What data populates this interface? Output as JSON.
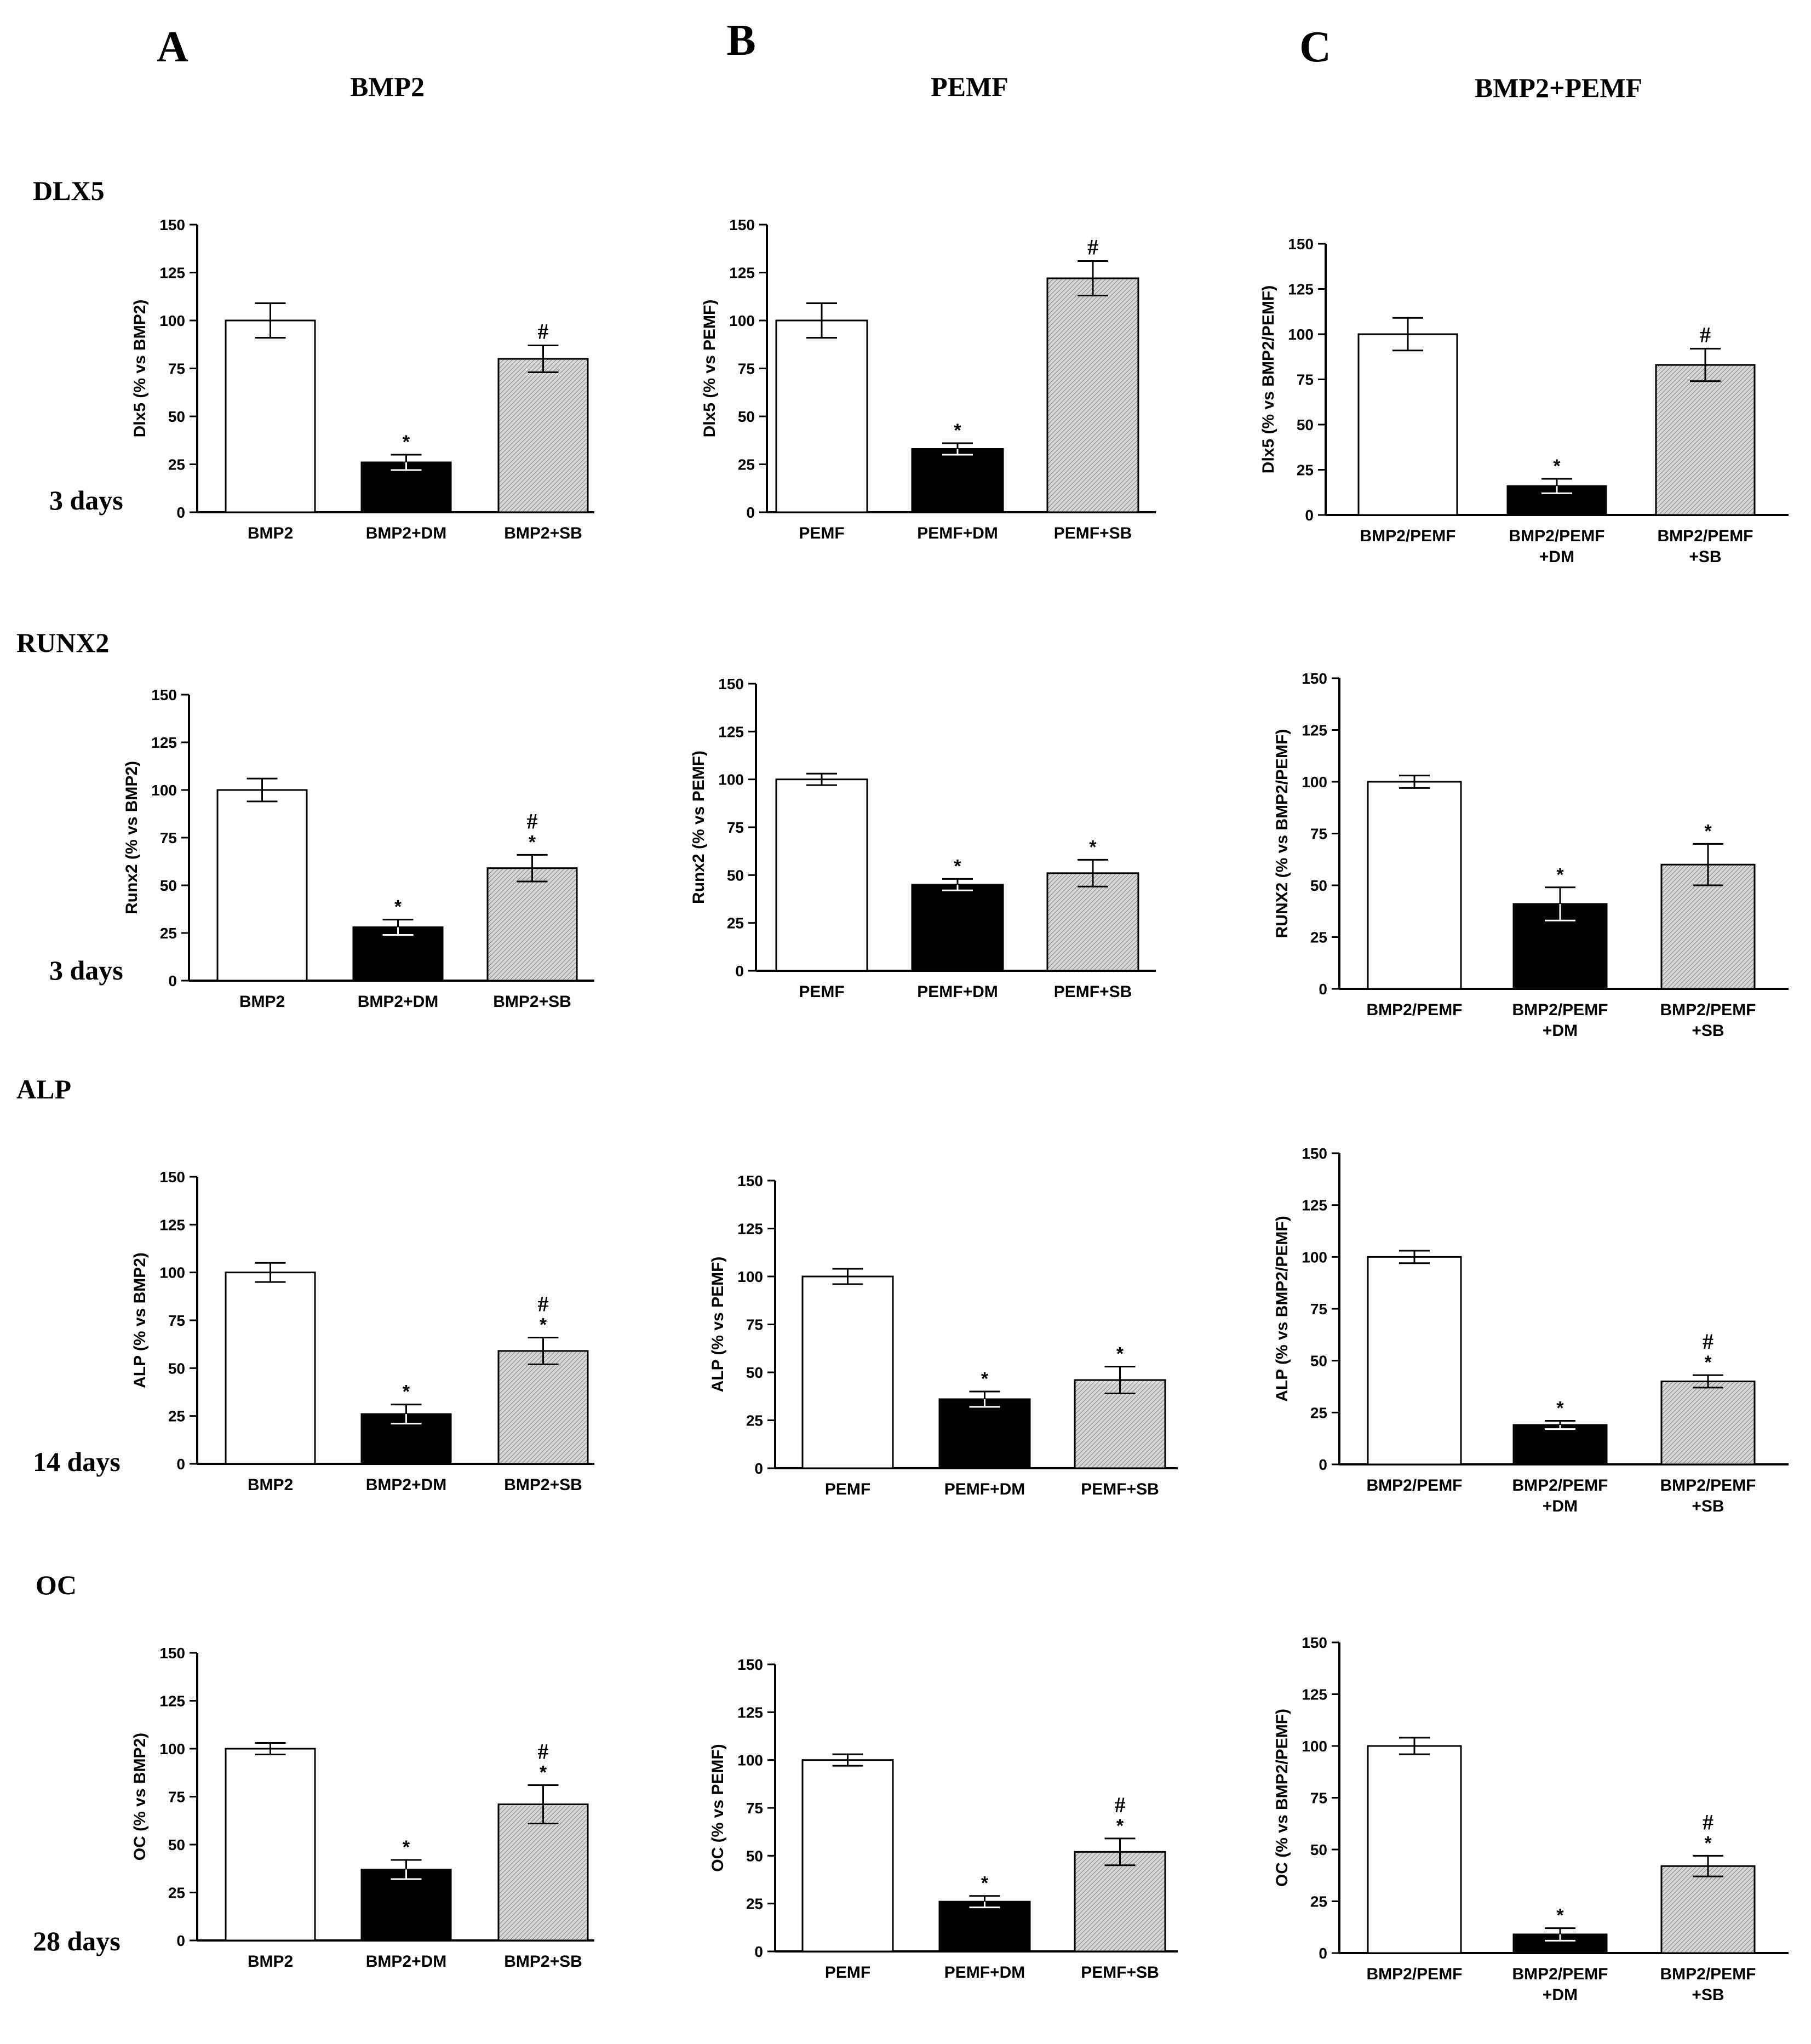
{
  "figure": {
    "columns": [
      {
        "letter": "A",
        "title": "BMP2"
      },
      {
        "letter": "B",
        "title": "PEMF"
      },
      {
        "letter": "C",
        "title": "BMP2+PEMF"
      }
    ],
    "rows": [
      {
        "label": "DLX5",
        "time": "3 days"
      },
      {
        "label": "RUNX2",
        "time": "3 days"
      },
      {
        "label": "ALP",
        "time": "14 days"
      },
      {
        "label": "OC",
        "time": "28 days"
      }
    ]
  },
  "styles": {
    "control_fill": "#ffffff",
    "dm_fill": "#000000",
    "sb_fill": "#d4d4d4",
    "stroke": "#000000"
  },
  "chart_data": [
    {
      "type": "bar",
      "panel": "DLX5-A",
      "ylabel": "Dlx5 (% vs BMP2)",
      "ylim": [
        0,
        150
      ],
      "yticks": [
        "0",
        "25",
        "50",
        "75",
        "100",
        "125",
        "150"
      ],
      "categories": [
        [
          "BMP2"
        ],
        [
          "BMP2+DM"
        ],
        [
          "BMP2+SB"
        ]
      ],
      "values": [
        100,
        26,
        80
      ],
      "errors": [
        9,
        4,
        7
      ],
      "annotations": [
        [],
        [
          "*"
        ],
        [
          "#"
        ]
      ]
    },
    {
      "type": "bar",
      "panel": "DLX5-B",
      "ylabel": "Dlx5 (% vs PEMF)",
      "ylim": [
        0,
        150
      ],
      "yticks": [
        "0",
        "25",
        "50",
        "75",
        "100",
        "125",
        "150"
      ],
      "categories": [
        [
          "PEMF"
        ],
        [
          "PEMF+DM"
        ],
        [
          "PEMF+SB"
        ]
      ],
      "values": [
        100,
        33,
        122
      ],
      "errors": [
        9,
        3,
        9
      ],
      "annotations": [
        [],
        [
          "*"
        ],
        [
          "#"
        ]
      ]
    },
    {
      "type": "bar",
      "panel": "DLX5-C",
      "ylabel": "Dlx5 (% vs BMP2/PEMF)",
      "ylim": [
        0,
        150
      ],
      "yticks": [
        "0",
        "25",
        "50",
        "75",
        "100",
        "125",
        "150"
      ],
      "categories": [
        [
          "BMP2/PEMF"
        ],
        [
          "BMP2/PEMF",
          "+DM"
        ],
        [
          "BMP2/PEMF",
          "+SB"
        ]
      ],
      "values": [
        100,
        16,
        83
      ],
      "errors": [
        9,
        4,
        9
      ],
      "annotations": [
        [],
        [
          "*"
        ],
        [
          "#"
        ]
      ]
    },
    {
      "type": "bar",
      "panel": "RUNX2-A",
      "ylabel": "Runx2 (% vs BMP2)",
      "ylim": [
        0,
        150
      ],
      "yticks": [
        "0",
        "25",
        "50",
        "75",
        "100",
        "125",
        "150"
      ],
      "categories": [
        [
          "BMP2"
        ],
        [
          "BMP2+DM"
        ],
        [
          "BMP2+SB"
        ]
      ],
      "values": [
        100,
        28,
        59
      ],
      "errors": [
        6,
        4,
        7
      ],
      "annotations": [
        [],
        [
          "*"
        ],
        [
          "#",
          "*"
        ]
      ]
    },
    {
      "type": "bar",
      "panel": "RUNX2-B",
      "ylabel": "Runx2 (% vs PEMF)",
      "ylim": [
        0,
        150
      ],
      "yticks": [
        "0",
        "25",
        "50",
        "75",
        "100",
        "125",
        "150"
      ],
      "categories": [
        [
          "PEMF"
        ],
        [
          "PEMF+DM"
        ],
        [
          "PEMF+SB"
        ]
      ],
      "values": [
        100,
        45,
        51
      ],
      "errors": [
        3,
        3,
        7
      ],
      "annotations": [
        [],
        [
          "*"
        ],
        [
          "*"
        ]
      ]
    },
    {
      "type": "bar",
      "panel": "RUNX2-C",
      "ylabel": "RUNX2 (% vs BMP2/PEMF)",
      "ylim": [
        0,
        150
      ],
      "yticks": [
        "0",
        "25",
        "50",
        "75",
        "100",
        "125",
        "150"
      ],
      "categories": [
        [
          "BMP2/PEMF"
        ],
        [
          "BMP2/PEMF",
          "+DM"
        ],
        [
          "BMP2/PEMF",
          "+SB"
        ]
      ],
      "values": [
        100,
        41,
        60
      ],
      "errors": [
        3,
        8,
        10
      ],
      "annotations": [
        [],
        [
          "*"
        ],
        [
          "*"
        ]
      ]
    },
    {
      "type": "bar",
      "panel": "ALP-A",
      "ylabel": "ALP (% vs BMP2)",
      "ylim": [
        0,
        150
      ],
      "yticks": [
        "0",
        "25",
        "50",
        "75",
        "100",
        "125",
        "150"
      ],
      "categories": [
        [
          "BMP2"
        ],
        [
          "BMP2+DM"
        ],
        [
          "BMP2+SB"
        ]
      ],
      "values": [
        100,
        26,
        59
      ],
      "errors": [
        5,
        5,
        7
      ],
      "annotations": [
        [],
        [
          "*"
        ],
        [
          "#",
          "*"
        ]
      ]
    },
    {
      "type": "bar",
      "panel": "ALP-B",
      "ylabel": "ALP (% vs PEMF)",
      "ylim": [
        0,
        150
      ],
      "yticks": [
        "0",
        "25",
        "50",
        "75",
        "100",
        "125",
        "150"
      ],
      "categories": [
        [
          "PEMF"
        ],
        [
          "PEMF+DM"
        ],
        [
          "PEMF+SB"
        ]
      ],
      "values": [
        100,
        36,
        46
      ],
      "errors": [
        4,
        4,
        7
      ],
      "annotations": [
        [],
        [
          "*"
        ],
        [
          "*"
        ]
      ]
    },
    {
      "type": "bar",
      "panel": "ALP-C",
      "ylabel": "ALP (% vs BMP2/PEMF)",
      "ylim": [
        0,
        150
      ],
      "yticks": [
        "0",
        "25",
        "50",
        "75",
        "100",
        "125",
        "150"
      ],
      "categories": [
        [
          "BMP2/PEMF"
        ],
        [
          "BMP2/PEMF",
          "+DM"
        ],
        [
          "BMP2/PEMF",
          "+SB"
        ]
      ],
      "values": [
        100,
        19,
        40
      ],
      "errors": [
        3,
        2,
        3
      ],
      "annotations": [
        [],
        [
          "*"
        ],
        [
          "#",
          "*"
        ]
      ]
    },
    {
      "type": "bar",
      "panel": "OC-A",
      "ylabel": "OC (% vs BMP2)",
      "ylim": [
        0,
        150
      ],
      "yticks": [
        "0",
        "25",
        "50",
        "75",
        "100",
        "125",
        "150"
      ],
      "categories": [
        [
          "BMP2"
        ],
        [
          "BMP2+DM"
        ],
        [
          "BMP2+SB"
        ]
      ],
      "values": [
        100,
        37,
        71
      ],
      "errors": [
        3,
        5,
        10
      ],
      "annotations": [
        [],
        [
          "*"
        ],
        [
          "#",
          "*"
        ]
      ]
    },
    {
      "type": "bar",
      "panel": "OC-B",
      "ylabel": "OC (% vs PEMF)",
      "ylim": [
        0,
        150
      ],
      "yticks": [
        "0",
        "25",
        "50",
        "75",
        "100",
        "125",
        "150"
      ],
      "categories": [
        [
          "PEMF"
        ],
        [
          "PEMF+DM"
        ],
        [
          "PEMF+SB"
        ]
      ],
      "values": [
        100,
        26,
        52
      ],
      "errors": [
        3,
        3,
        7
      ],
      "annotations": [
        [],
        [
          "*"
        ],
        [
          "#",
          "*"
        ]
      ]
    },
    {
      "type": "bar",
      "panel": "OC-C",
      "ylabel": "OC (% vs BMP2/PEMF)",
      "ylim": [
        0,
        150
      ],
      "yticks": [
        "0",
        "25",
        "50",
        "75",
        "100",
        "125",
        "150"
      ],
      "categories": [
        [
          "BMP2/PEMF"
        ],
        [
          "BMP2/PEMF",
          "+DM"
        ],
        [
          "BMP2/PEMF",
          "+SB"
        ]
      ],
      "values": [
        100,
        9,
        42
      ],
      "errors": [
        4,
        3,
        5
      ],
      "annotations": [
        [],
        [
          "*"
        ],
        [
          "#",
          "*"
        ]
      ]
    }
  ]
}
